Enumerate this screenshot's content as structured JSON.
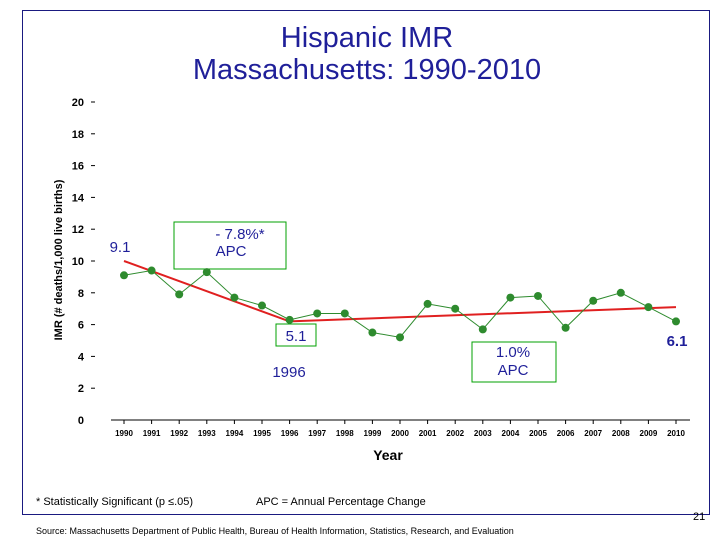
{
  "chart_data": {
    "type": "line",
    "title_line1": "Hispanic IMR",
    "title_line2": "Massachusetts: 1990-2010",
    "xlabel": "Year",
    "ylabel": "IMR (# deaths/1,000 live births)",
    "ylim": [
      0,
      20
    ],
    "yticks": [
      "0",
      "2",
      "4",
      "6",
      "8",
      "10",
      "12",
      "14",
      "16",
      "18",
      "20"
    ],
    "categories": [
      "1990",
      "1991",
      "1992",
      "1993",
      "1994",
      "1995",
      "1996",
      "1997",
      "1998",
      "1999",
      "2000",
      "2001",
      "2002",
      "2003",
      "2004",
      "2005",
      "2006",
      "2007",
      "2008",
      "2009",
      "2010"
    ],
    "observed": [
      9.1,
      9.4,
      7.9,
      9.3,
      7.7,
      7.2,
      6.3,
      6.7,
      6.7,
      5.5,
      5.2,
      7.3,
      7.0,
      5.7,
      7.7,
      7.8,
      5.8,
      7.5,
      8.0,
      7.1,
      6.2
    ],
    "trend": [
      {
        "x": "1990",
        "y": 10.0
      },
      {
        "x": "1996",
        "y": 6.2
      },
      {
        "x": "2010",
        "y": 7.1
      }
    ],
    "grid": false,
    "annotations": {
      "label_start": "9.1",
      "label_low": "5.1",
      "label_low_year": "1996",
      "label_end": "6.1",
      "apc1_line1": "- 7.8%*",
      "apc1_line2": "APC",
      "apc2_line1": "1.0%",
      "apc2_line2": "APC"
    },
    "colors": {
      "marker": "#2e8b2e",
      "trend": "#e02020",
      "box_border": "#00a000",
      "title": "#1f1f99",
      "frame": "#1a1a80"
    }
  },
  "footnote_sig": "* Statistically Significant  (p ≤.05)",
  "footnote_apc": "APC = Annual Percentage Change",
  "source": "Source:  Massachusetts Department of Public Health, Bureau of Health Information, Statistics, Research, and Evaluation",
  "page_number": "21"
}
